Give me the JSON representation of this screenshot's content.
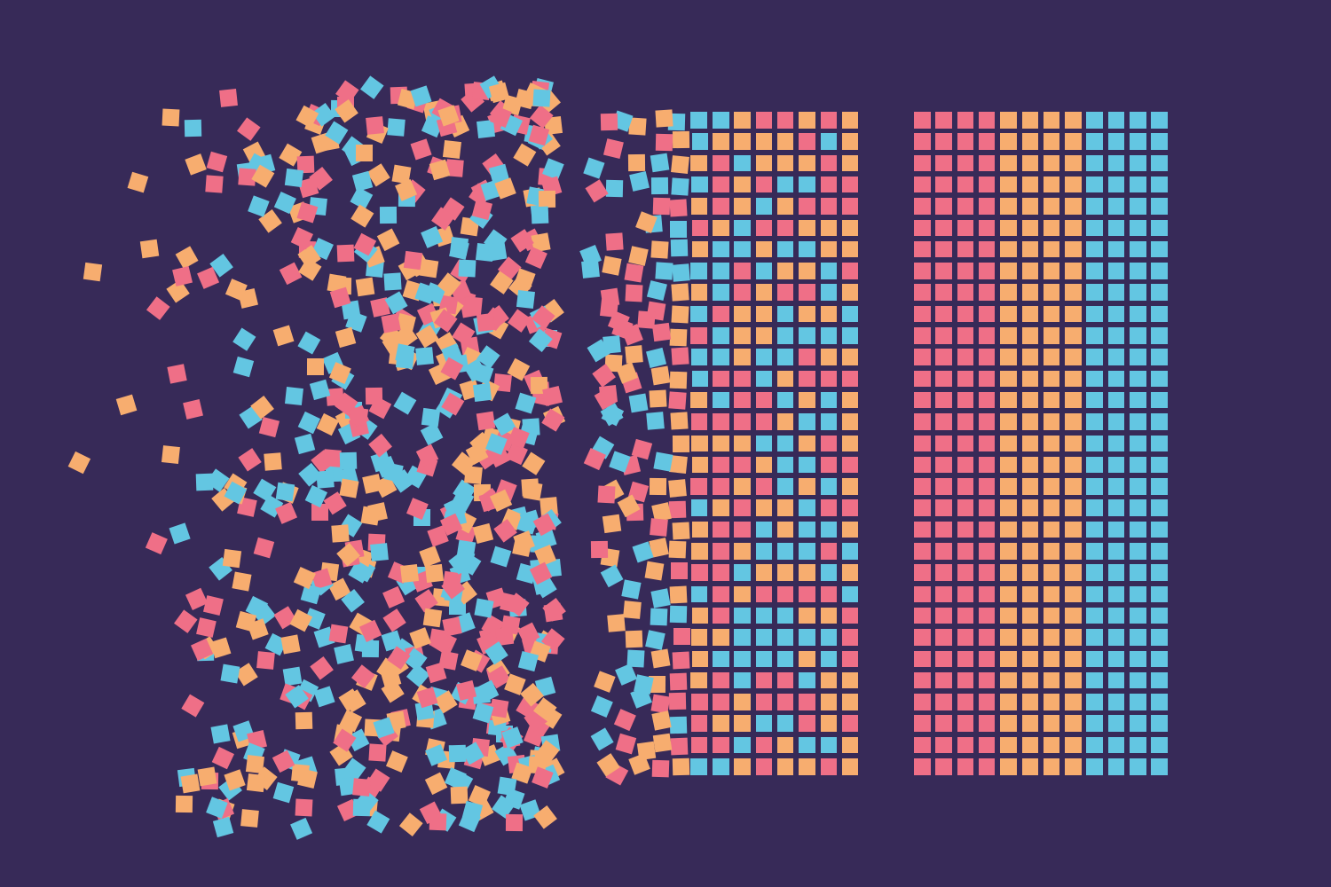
{
  "illustration": {
    "subject": "data-sorting",
    "background": "#372a58",
    "palette": {
      "pink": "#ef6f87",
      "orange": "#f7ad6f",
      "blue": "#63c6e2"
    },
    "sections": [
      {
        "id": "scattered",
        "state": "unsorted"
      },
      {
        "id": "partially-sorted",
        "state": "transitioning"
      },
      {
        "id": "sorted",
        "state": "sorted",
        "band_order": [
          "pink",
          "orange",
          "blue"
        ],
        "band_columns": [
          4,
          4,
          4
        ],
        "rows": 31
      }
    ]
  }
}
